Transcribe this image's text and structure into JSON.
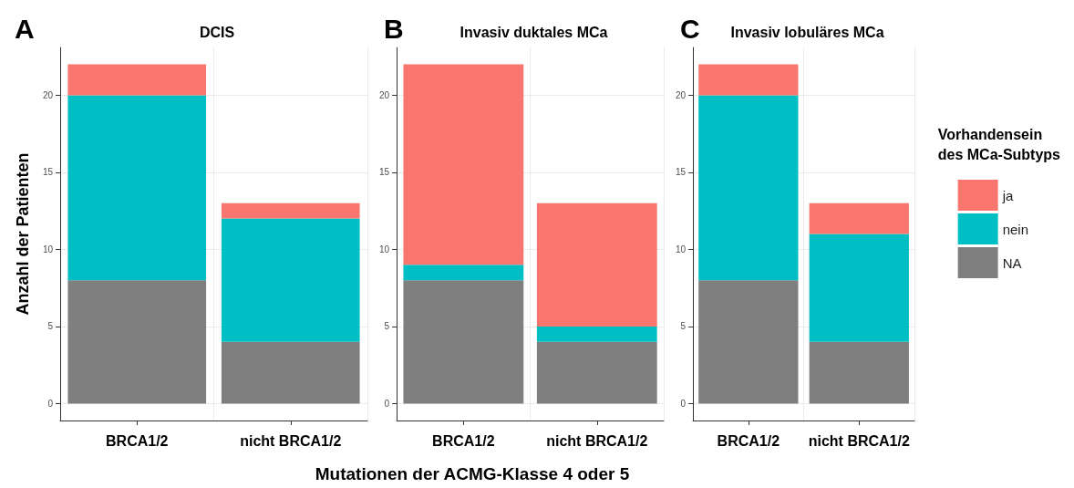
{
  "chart_data": [
    {
      "type": "bar",
      "title": "DCIS",
      "annotations": [
        "A"
      ],
      "ylabel": "Anzahl der Patienten",
      "categories": [
        "BRCA1/2",
        "nicht BRCA1/2"
      ],
      "stacked": true,
      "series": [
        {
          "color": "#7f7f7f",
          "values": [
            8,
            4
          ]
        },
        {
          "color": "#00bfc4",
          "values": [
            12,
            8
          ]
        },
        {
          "color": "#f8766d",
          "values": [
            2,
            1
          ]
        }
      ],
      "ylim": [
        -1.1,
        23.1
      ],
      "yticks": [
        0,
        5,
        10,
        15,
        20
      ],
      "grid": true,
      "legend": false
    },
    {
      "type": "bar",
      "title": "Invasiv duktales MCa",
      "annotations": [
        "B"
      ],
      "xlabel": "Mutationen der ACMG-Klasse 4 oder 5",
      "categories": [
        "BRCA1/2",
        "nicht BRCA1/2"
      ],
      "stacked": true,
      "series": [
        {
          "color": "#7f7f7f",
          "values": [
            8,
            4
          ]
        },
        {
          "color": "#00bfc4",
          "values": [
            1,
            1
          ]
        },
        {
          "color": "#f8766d",
          "values": [
            13,
            8
          ]
        }
      ],
      "ylim": [
        -1.1,
        23.1
      ],
      "yticks": [
        0,
        5,
        10,
        15,
        20
      ],
      "grid": true,
      "legend": false
    },
    {
      "type": "bar",
      "title": "Invasiv lobuläres MCa",
      "annotations": [
        "C"
      ],
      "categories": [
        "BRCA1/2",
        "nicht BRCA1/2"
      ],
      "stacked": true,
      "legend_title": "Vorhandensein\ndes MCa-Subtyps",
      "series": [
        {
          "name": "NA",
          "color": "#7f7f7f",
          "values": [
            8,
            4
          ]
        },
        {
          "name": "nein",
          "color": "#00bfc4",
          "values": [
            12,
            7
          ]
        },
        {
          "name": "ja",
          "color": "#f8766d",
          "values": [
            2,
            2
          ]
        }
      ],
      "ylim": [
        -1.1,
        23.1
      ],
      "yticks": [
        0,
        5,
        10,
        15,
        20
      ],
      "grid": true,
      "legend": "right"
    }
  ]
}
